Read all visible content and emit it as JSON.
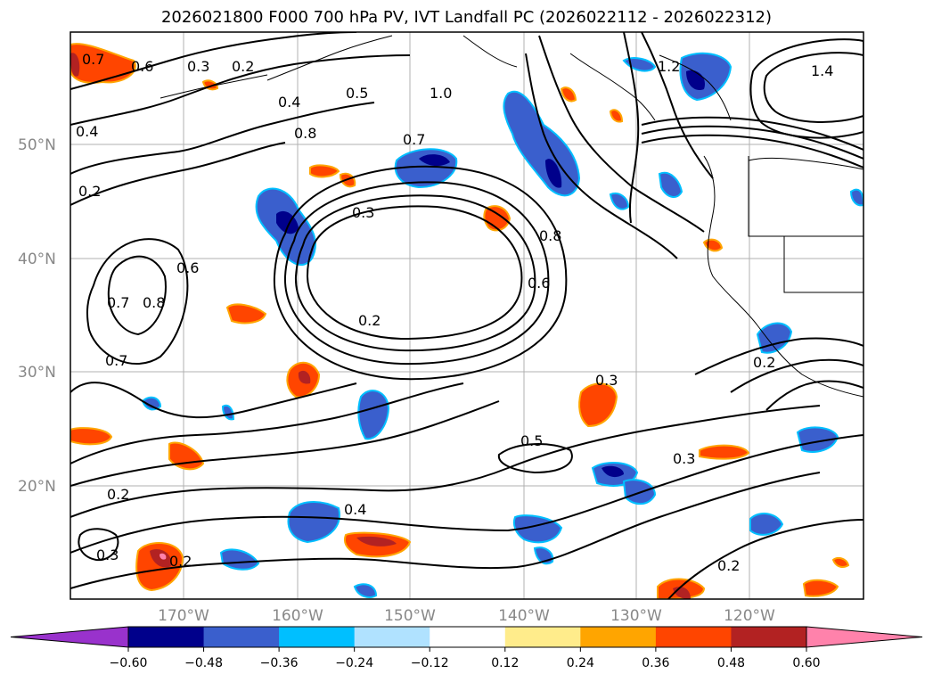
{
  "title": "2026021800 F000 700 hPa PV, IVT Landfall PC (2026022112 - 2026022312)",
  "lat_labels": [
    "50°N",
    "40°N",
    "30°N",
    "20°N"
  ],
  "lon_labels": [
    "170°W",
    "160°W",
    "150°W",
    "140°W",
    "130°W",
    "120°W"
  ],
  "colorbar": {
    "ticks": [
      "−0.60",
      "−0.48",
      "−0.36",
      "−0.24",
      "−0.12",
      "0.12",
      "0.24",
      "0.36",
      "0.48",
      "0.60"
    ],
    "colors": [
      "#9932cc",
      "#00008b",
      "#3a5fcd",
      "#00bfff",
      "#b0e2ff",
      "#ffffff",
      "#ffec8b",
      "#ffa500",
      "#ff4500",
      "#b22222",
      "#ff82ab"
    ]
  },
  "contour_labels": [
    "0.7",
    "0.6",
    "0.3",
    "0.2",
    "0.4",
    "0.5",
    "0.8",
    "1.0",
    "1.2",
    "1.4",
    "0.2",
    "0.3",
    "0.6",
    "0.8",
    "0.7",
    "0.6",
    "0.2",
    "0.3",
    "0.5",
    "0.3",
    "0.4",
    "0.2",
    "0.3",
    "0.2",
    "0.2",
    "0.2",
    "0.7",
    "0.7",
    "0.4",
    "0.8"
  ],
  "colors": {
    "contour": "#000000",
    "grid": "#b0b0b0",
    "coast": "#000000",
    "axis_text": "#888888"
  }
}
